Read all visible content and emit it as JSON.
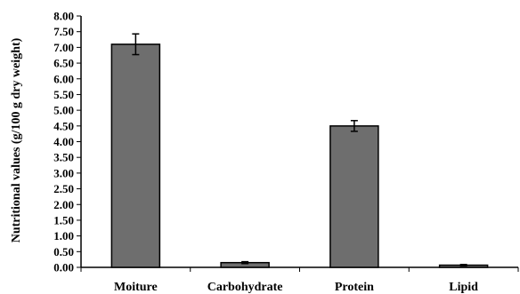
{
  "chart_data": {
    "type": "bar",
    "title": "",
    "xlabel": "",
    "ylabel": "Nutritional values (g/100 g dry weight)",
    "categories": [
      "Moiture",
      "Carbohydrate",
      "Protein",
      "Lipid"
    ],
    "values": [
      7.1,
      0.15,
      4.5,
      0.07
    ],
    "errors": [
      0.33,
      0.03,
      0.17,
      0.02
    ],
    "ylim": [
      0,
      8
    ],
    "yticks": [
      "0.00",
      "0.50",
      "1.00",
      "1.50",
      "2.00",
      "2.50",
      "3.00",
      "3.50",
      "4.00",
      "4.50",
      "5.00",
      "5.50",
      "6.00",
      "6.50",
      "7.00",
      "7.50",
      "8.00"
    ],
    "bar_color": "#6e6e6e",
    "grid": false,
    "legend": "none"
  }
}
